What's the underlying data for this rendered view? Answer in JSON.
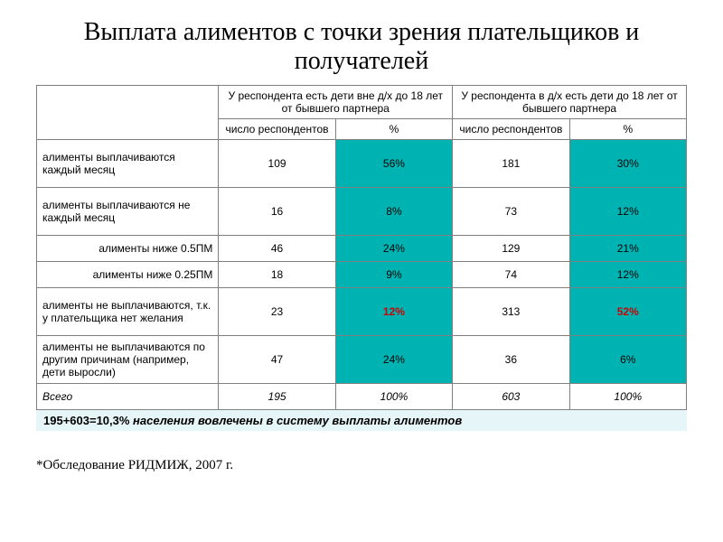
{
  "title": "Выплата алиментов с точки зрения плательщиков и получателей",
  "headers": {
    "group1": "У респондента есть дети вне д/х до 18 лет от бывшего партнера",
    "group2": "У респондента в д/х есть дети до 18 лет от бывшего партнера",
    "count": "число респондентов",
    "pct": "%"
  },
  "rows": {
    "r1": {
      "label": "алименты выплачиваются каждый месяц",
      "n1": "109",
      "p1": "56%",
      "n2": "181",
      "p2": "30%"
    },
    "r2": {
      "label": "алименты выплачиваются не каждый месяц",
      "n1": "16",
      "p1": "8%",
      "n2": "73",
      "p2": "12%"
    },
    "r3": {
      "label": "алименты ниже 0.5ПМ",
      "n1": "46",
      "p1": "24%",
      "n2": "129",
      "p2": "21%"
    },
    "r4": {
      "label": "алименты ниже 0.25ПМ",
      "n1": "18",
      "p1": "9%",
      "n2": "74",
      "p2": "12%"
    },
    "r5": {
      "label": "алименты не выплачиваются, т.к. у плательщика нет желания",
      "n1": "23",
      "p1": "12%",
      "n2": "313",
      "p2": "52%"
    },
    "r6": {
      "label": "алименты не выплачиваются по другим причинам (например, дети выросли)",
      "n1": "47",
      "p1": "24%",
      "n2": "36",
      "p2": "6%"
    },
    "total": {
      "label": "Всего",
      "n1": "195",
      "p1": "100%",
      "n2": "603",
      "p2": "100%"
    }
  },
  "note_prefix": "195+603=10,3%",
  "note_rest": " населения вовлечены в систему выплаты алиментов",
  "footnote": "*Обследование РИДМИЖ, 2007 г.",
  "colors": {
    "teal": "#00b3b3",
    "red": "#cc0000",
    "note_bg": "#e6f5f7",
    "border": "#808080"
  }
}
